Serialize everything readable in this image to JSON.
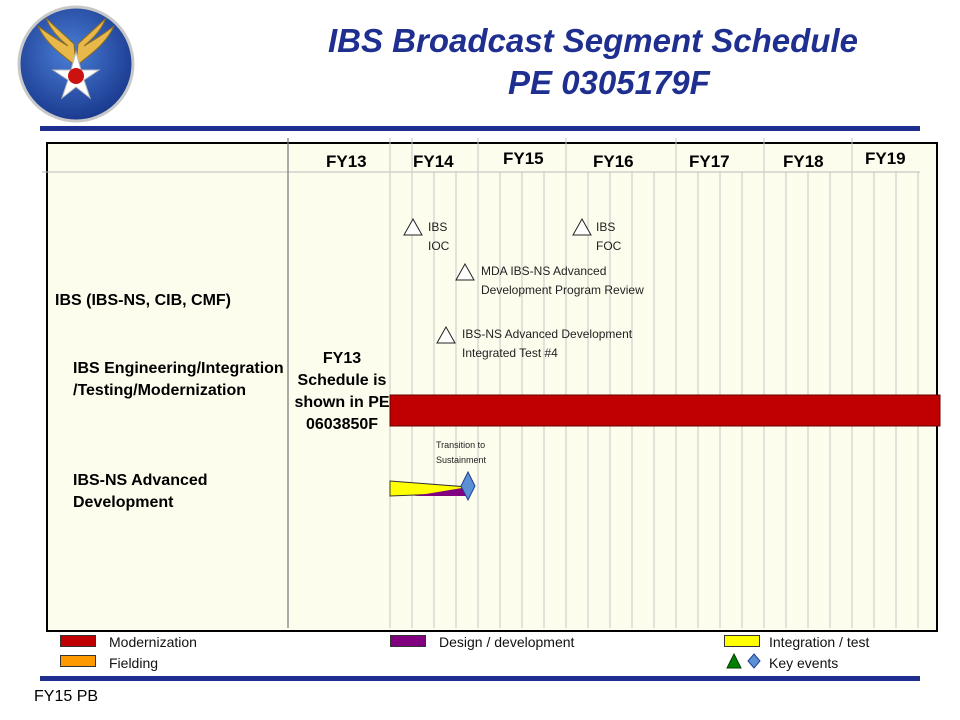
{
  "title": {
    "line1": "IBS Broadcast Segment Schedule",
    "line2": "PE 0305179F"
  },
  "fiscal_years": [
    "FY13",
    "FY14",
    "FY15",
    "FY16",
    "FY17",
    "FY18",
    "FY19"
  ],
  "rows": {
    "program": "IBS (IBS-NS, CIB, CMF)",
    "engineering": "IBS Engineering/Integration /Testing/Modernization",
    "advanced_dev": "IBS-NS Advanced Development"
  },
  "fy13_note": "FY13 Schedule is shown in PE 0603850F",
  "events": {
    "ibs_ioc": "IBS IOC",
    "ibs_foc": "IBS FOC",
    "mda_review": "MDA IBS-NS Advanced Development Program Review",
    "integrated_test": "IBS-NS Advanced Development Integrated Test #4",
    "transition": "Transition to Sustainment"
  },
  "legend": {
    "modernization": "Modernization",
    "fielding": "Fielding",
    "design": "Design / development",
    "integration": "Integration / test",
    "key_events": "Key events"
  },
  "colors": {
    "modernization": "#c00000",
    "fielding": "#ff9900",
    "design": "#800080",
    "integration": "#ffff00",
    "key_event_triangle": "#008000",
    "key_event_diamond": "#5b8fd6",
    "title": "#1f2f8f"
  },
  "footer": "FY15 PB"
}
